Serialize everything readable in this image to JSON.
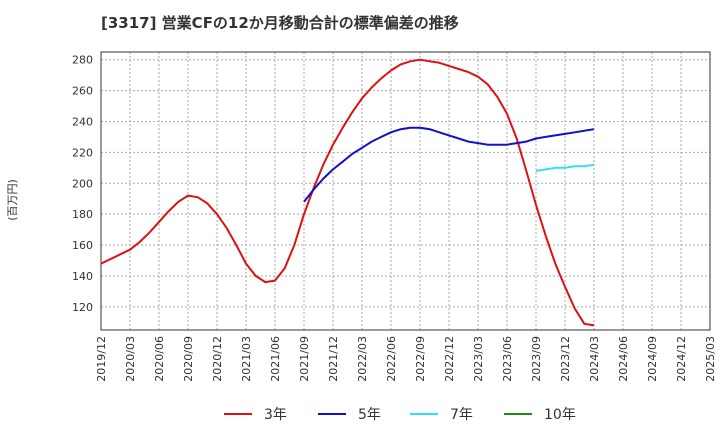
{
  "chart_data": {
    "type": "line",
    "title": "[3317]  営業CFの12か月移動合計の標準偏差の推移",
    "ylabel": "(百万円)",
    "xlabel": "",
    "ylim": [
      105,
      285
    ],
    "yticks": [
      120,
      140,
      160,
      180,
      200,
      220,
      240,
      260,
      280
    ],
    "x_ticks": [
      "2019/12",
      "2020/03",
      "2020/06",
      "2020/09",
      "2020/12",
      "2021/03",
      "2021/06",
      "2021/09",
      "2021/12",
      "2022/03",
      "2022/06",
      "2022/09",
      "2022/12",
      "2023/03",
      "2023/06",
      "2023/09",
      "2023/12",
      "2024/03",
      "2024/06",
      "2024/09",
      "2024/12",
      "2025/03"
    ],
    "grid": true,
    "legend_position": "bottom",
    "series": [
      {
        "name": "3年",
        "color": "#dd1111",
        "x": [
          "2019/12",
          "2020/01",
          "2020/02",
          "2020/03",
          "2020/04",
          "2020/05",
          "2020/06",
          "2020/07",
          "2020/08",
          "2020/09",
          "2020/10",
          "2020/11",
          "2020/12",
          "2021/01",
          "2021/02",
          "2021/03",
          "2021/04",
          "2021/05",
          "2021/06",
          "2021/07",
          "2021/08",
          "2021/09",
          "2021/10",
          "2021/11",
          "2021/12",
          "2022/01",
          "2022/02",
          "2022/03",
          "2022/04",
          "2022/05",
          "2022/06",
          "2022/07",
          "2022/08",
          "2022/09",
          "2022/10",
          "2022/11",
          "2022/12",
          "2023/01",
          "2023/02",
          "2023/03",
          "2023/04",
          "2023/05",
          "2023/06",
          "2023/07",
          "2023/08",
          "2023/09",
          "2023/10",
          "2023/11",
          "2023/12",
          "2024/01",
          "2024/02",
          "2024/03"
        ],
        "values": [
          148,
          151,
          154,
          157,
          162,
          168,
          175,
          182,
          188,
          192,
          191,
          187,
          180,
          171,
          160,
          148,
          140,
          136,
          137,
          145,
          160,
          180,
          197,
          212,
          225,
          236,
          246,
          255,
          262,
          268,
          273,
          277,
          279,
          280,
          279,
          278,
          276,
          274,
          272,
          269,
          264,
          256,
          245,
          229,
          208,
          186,
          166,
          148,
          133,
          119,
          109,
          108
        ]
      },
      {
        "name": "5年",
        "color": "#1111cc",
        "x": [
          "2021/09",
          "2021/10",
          "2021/11",
          "2021/12",
          "2022/01",
          "2022/02",
          "2022/03",
          "2022/04",
          "2022/05",
          "2022/06",
          "2022/07",
          "2022/08",
          "2022/09",
          "2022/10",
          "2022/11",
          "2022/12",
          "2023/01",
          "2023/02",
          "2023/03",
          "2023/04",
          "2023/05",
          "2023/06",
          "2023/07",
          "2023/08",
          "2023/09",
          "2023/10",
          "2023/11",
          "2023/12",
          "2024/01",
          "2024/02",
          "2024/03"
        ],
        "values": [
          188,
          196,
          203,
          209,
          214,
          219,
          223,
          227,
          230,
          233,
          235,
          236,
          236,
          235,
          233,
          231,
          229,
          227,
          226,
          225,
          225,
          225,
          226,
          227,
          229,
          230,
          231,
          232,
          233,
          234,
          235
        ]
      },
      {
        "name": "7年",
        "color": "#33e0f0",
        "x": [
          "2023/09",
          "2023/10",
          "2023/11",
          "2023/12",
          "2024/01",
          "2024/02",
          "2024/03"
        ],
        "values": [
          208,
          209,
          210,
          210,
          211,
          211,
          212
        ]
      },
      {
        "name": "10年",
        "color": "#228822",
        "x": [],
        "values": []
      }
    ]
  }
}
